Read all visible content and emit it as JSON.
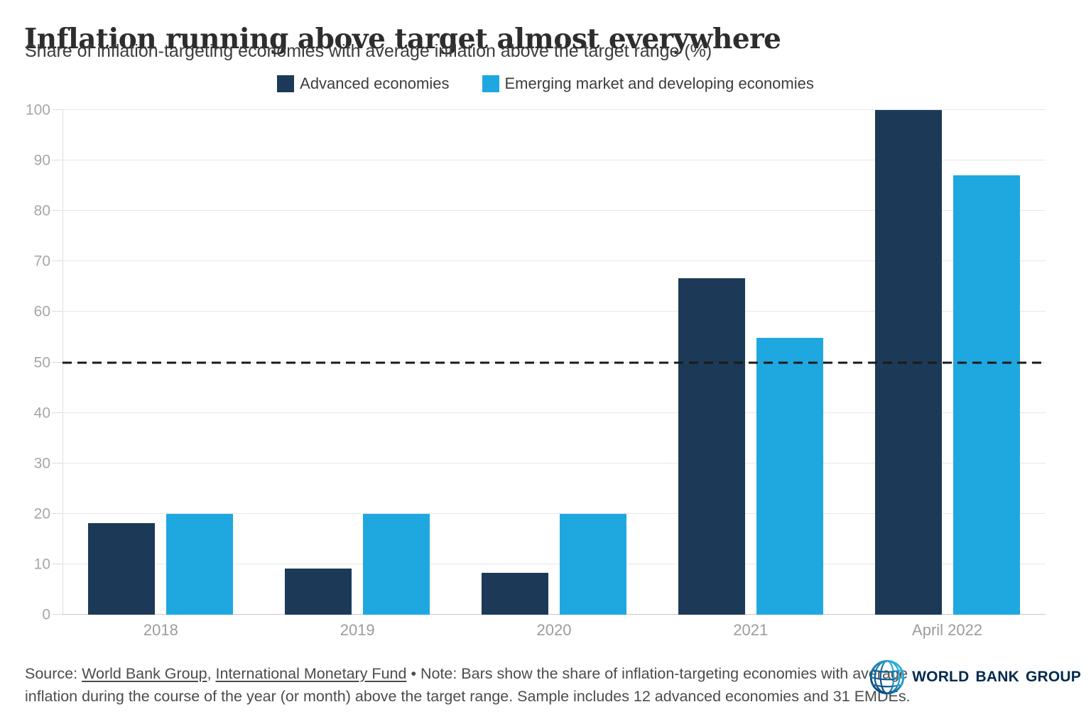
{
  "chart_data": {
    "type": "bar",
    "title": "Inflation running above target almost everywhere",
    "subtitle": "Share of inflation-targeting economies with average inflation above the target range (%)",
    "categories": [
      "2018",
      "2019",
      "2020",
      "2021",
      "April 2022"
    ],
    "series": [
      {
        "name": "Advanced economies",
        "color": "#1c3a57",
        "values": [
          18.2,
          9.1,
          8.3,
          66.7,
          100
        ]
      },
      {
        "name": "Emerging market and developing economies",
        "color": "#1fa8e0",
        "values": [
          20,
          20,
          20,
          54.8,
          87.1
        ]
      }
    ],
    "xlabel": "",
    "ylabel": "",
    "ylim": [
      0,
      100
    ],
    "yticks": [
      0,
      10,
      20,
      30,
      40,
      50,
      60,
      70,
      80,
      90,
      100
    ],
    "grid": "horizontal",
    "legend_position": "top",
    "reference_line": {
      "value": 50,
      "style": "dashed",
      "color": "#1a1a1a"
    }
  },
  "footer": {
    "source_label": "Source:",
    "link_world_bank": "World Bank Group",
    "comma": ",",
    "link_imf": "International Monetary Fund",
    "note_text": "• Note: Bars show the share of inflation-targeting economies with average inflation during the course of the year (or month) above the target range. Sample includes 12 advanced economies and 31 EMDEs.",
    "logo_text": "WORLD BANK GROUP"
  }
}
